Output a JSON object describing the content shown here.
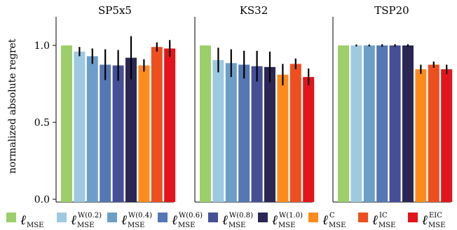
{
  "chart_data": {
    "type": "bar",
    "ylabel": "normalized absolute regret",
    "ylim": [
      0.0,
      1.2
    ],
    "yticks": [
      "0.0",
      "0.5",
      "1.0"
    ],
    "ytick_values": [
      0.0,
      0.5,
      1.0
    ],
    "grid": false,
    "legend_position": "bottom",
    "legend": [
      {
        "base": "ℓ",
        "sub": "MSE",
        "sup": "",
        "color": "#9ccf6a"
      },
      {
        "base": "ℓ",
        "sub": "MSE",
        "sup": "W(0.2)",
        "color": "#9ecae1"
      },
      {
        "base": "ℓ",
        "sub": "MSE",
        "sup": "W(0.4)",
        "color": "#6c9ec7"
      },
      {
        "base": "ℓ",
        "sub": "MSE",
        "sup": "W(0.6)",
        "color": "#5577b3"
      },
      {
        "base": "ℓ",
        "sub": "MSE",
        "sup": "W(0.8)",
        "color": "#454f97"
      },
      {
        "base": "ℓ",
        "sub": "MSE",
        "sup": "W(1.0)",
        "color": "#2a2755"
      },
      {
        "base": "ℓ",
        "sub": "MSE",
        "sup": "C",
        "color": "#fd8c1c"
      },
      {
        "base": "ℓ",
        "sub": "MSE",
        "sup": "IC",
        "color": "#ee4f1f"
      },
      {
        "base": "ℓ",
        "sub": "MSE",
        "sup": "EIC",
        "color": "#e3141b"
      }
    ],
    "panels": [
      {
        "title": "SP5x5",
        "values": [
          1.0,
          0.96,
          0.93,
          0.875,
          0.87,
          0.92,
          0.87,
          0.99,
          0.98
        ],
        "errors": [
          null,
          0.03,
          0.05,
          0.1,
          0.1,
          0.14,
          0.04,
          0.03,
          0.055
        ]
      },
      {
        "title": "KS32",
        "values": [
          1.0,
          0.905,
          0.885,
          0.875,
          0.865,
          0.86,
          0.81,
          0.88,
          0.795
        ],
        "errors": [
          null,
          0.08,
          0.09,
          0.09,
          0.1,
          0.1,
          0.07,
          0.035,
          0.055
        ]
      },
      {
        "title": "TSP20",
        "values": [
          1.0,
          1.0,
          1.0,
          1.0,
          1.0,
          1.0,
          0.845,
          0.875,
          0.845
        ],
        "errors": [
          null,
          0.006,
          0.006,
          0.008,
          0.008,
          0.008,
          0.03,
          0.02,
          0.03
        ]
      }
    ]
  }
}
